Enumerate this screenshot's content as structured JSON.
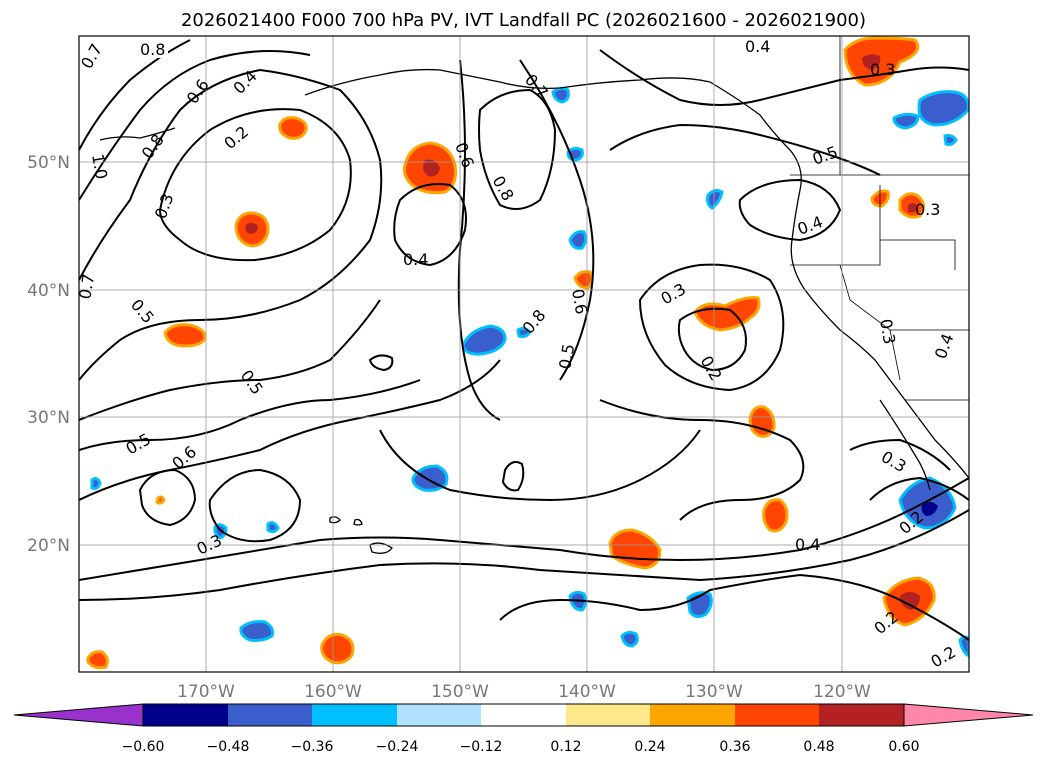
{
  "title": "2026021400 F000 700 hPa PV, IVT Landfall PC (2026021600 - 2026021900)",
  "lat_labels": [
    "50°N",
    "40°N",
    "30°N",
    "20°N"
  ],
  "lon_labels": [
    "170°W",
    "160°W",
    "150°W",
    "140°W",
    "130°W",
    "120°W"
  ],
  "colorbar": {
    "ticks": [
      "−0.60",
      "−0.48",
      "−0.36",
      "−0.24",
      "−0.12",
      "0.12",
      "0.24",
      "0.36",
      "0.48",
      "0.60"
    ],
    "colors": [
      "#9932cc",
      "#00008b",
      "#3a5fcd",
      "#00bfff",
      "#b0e2ff",
      "#ffffff",
      "#ffe88a",
      "#ffa500",
      "#ff4500",
      "#b22222",
      "#ff88aa"
    ]
  },
  "contour_labels": [
    "0.7",
    "0.8",
    "0.6",
    "0.4",
    "0.8",
    "0.2",
    "0.3",
    "1.0",
    "0.7",
    "0.5",
    "0.6",
    "0.4",
    "0.8",
    "0.7",
    "0.8",
    "0.5",
    "0.5",
    "0.4",
    "0.3",
    "0.2",
    "0.5",
    "0.6",
    "0.3",
    "0.4",
    "0.5",
    "0.4",
    "0.3",
    "0.3",
    "0.3",
    "0.4",
    "0.3",
    "0.6",
    "0.2",
    "0.2",
    "0.2"
  ],
  "features": {
    "contours": "700 hPa PV",
    "shading": "IVT Landfall PC",
    "coastlines": true,
    "gridlines": true
  }
}
